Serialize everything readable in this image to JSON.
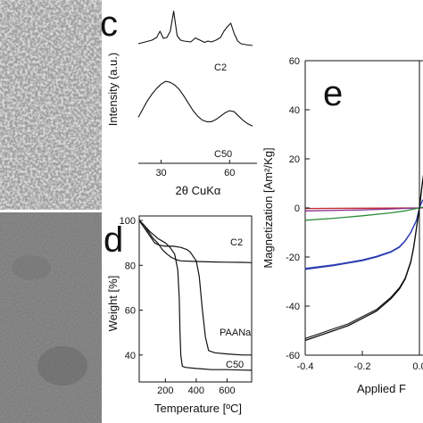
{
  "panels": {
    "c": {
      "letter": "c"
    },
    "d": {
      "letter": "d"
    },
    "e": {
      "letter": "e"
    }
  },
  "colors": {
    "ink": "#111111",
    "em_top_background": "#d9d9d9",
    "em_bottom_background": "#8a8a8a",
    "blue": "#2b3bb0",
    "green": "#2e8b3a",
    "purple": "#8a2a8a",
    "red": "#c0282d"
  },
  "chart_data": [
    {
      "panel": "c",
      "type": "line",
      "xlabel": "2θ CuKα",
      "ylabel": "Intensity (a.u.)",
      "xlim": [
        20,
        72
      ],
      "xticks": [
        30,
        60
      ],
      "series": [
        {
          "name": "C2",
          "x": [
            20,
            23,
            26,
            28,
            29.5,
            31,
            32.5,
            34,
            35.5,
            37,
            38.5,
            40,
            43,
            45,
            47,
            49,
            50.5,
            52,
            54,
            56,
            57.5,
            59,
            60.5,
            62,
            63.5,
            65,
            67,
            70
          ],
          "y": [
            0.22,
            0.26,
            0.3,
            0.36,
            0.5,
            0.34,
            0.36,
            0.5,
            0.95,
            0.4,
            0.3,
            0.28,
            0.26,
            0.35,
            0.3,
            0.25,
            0.28,
            0.26,
            0.3,
            0.36,
            0.5,
            0.6,
            0.68,
            0.45,
            0.28,
            0.22,
            0.2,
            0.18
          ]
        },
        {
          "name": "C50",
          "x": [
            20,
            22,
            24,
            26,
            28,
            30,
            32,
            34,
            36,
            38,
            40,
            42,
            44,
            46,
            48,
            50,
            52,
            54,
            56,
            58,
            60,
            62,
            64,
            66,
            68,
            70
          ],
          "y": [
            0.3,
            0.45,
            0.6,
            0.72,
            0.82,
            0.9,
            0.95,
            0.93,
            0.88,
            0.8,
            0.68,
            0.55,
            0.42,
            0.32,
            0.25,
            0.22,
            0.22,
            0.26,
            0.32,
            0.38,
            0.42,
            0.4,
            0.32,
            0.24,
            0.18,
            0.14
          ]
        }
      ]
    },
    {
      "panel": "d",
      "type": "line",
      "xlabel": "Temperature [ºC]",
      "ylabel": "Weight [%]",
      "xlim": [
        30,
        760
      ],
      "ylim": [
        28,
        102
      ],
      "xticks": [
        200,
        400,
        600
      ],
      "yticks": [
        40,
        60,
        80,
        100
      ],
      "series": [
        {
          "name": "C2",
          "x": [
            30,
            60,
            90,
            120,
            150,
            180,
            210,
            240,
            270,
            300,
            400,
            500,
            600,
            700,
            760
          ],
          "y": [
            100,
            98,
            95,
            92,
            90,
            87,
            85,
            83.5,
            82.5,
            82,
            81.7,
            81.5,
            81.4,
            81.3,
            81.2
          ]
        },
        {
          "name": "PAANa",
          "x": [
            30,
            60,
            100,
            130,
            160,
            200,
            250,
            300,
            340,
            360,
            380,
            400,
            420,
            440,
            460,
            480,
            520,
            600,
            700,
            760
          ],
          "y": [
            100,
            97,
            93,
            90,
            89,
            88.5,
            88.5,
            88,
            87,
            86,
            84,
            82,
            75,
            60,
            48,
            42,
            41,
            40.5,
            40,
            40
          ]
        },
        {
          "name": "C50",
          "x": [
            30,
            60,
            100,
            150,
            200,
            230,
            260,
            280,
            290,
            295,
            300,
            310,
            330,
            400,
            500,
            600,
            700,
            760
          ],
          "y": [
            100,
            98,
            95,
            92,
            90,
            88,
            85,
            78,
            65,
            50,
            40,
            35,
            34.5,
            34,
            33.5,
            33.5,
            33.3,
            33.2
          ]
        }
      ]
    },
    {
      "panel": "e",
      "type": "line",
      "xlabel": "Applied F",
      "ylabel": "Magnetization [Am²/Kg]",
      "xlim": [
        -0.4,
        0.03
      ],
      "ylim": [
        -60,
        60
      ],
      "xticks": [
        -0.4,
        -0.2,
        0.0
      ],
      "xtick_labels": [
        "-0.4",
        "-0.2",
        "0.0"
      ],
      "yticks": [
        -60,
        -40,
        -20,
        0,
        20,
        40,
        60
      ],
      "series": [
        {
          "color": "black",
          "x": [
            -0.4,
            -0.35,
            -0.3,
            -0.25,
            -0.2,
            -0.15,
            -0.1,
            -0.07,
            -0.05,
            -0.03,
            -0.02,
            -0.01,
            0,
            0.01,
            0.02
          ],
          "y": [
            -54,
            -52,
            -50,
            -48,
            -45,
            -42,
            -37,
            -33,
            -29,
            -22,
            -16,
            -8,
            0,
            10,
            18
          ]
        },
        {
          "color": "blue",
          "x": [
            -0.4,
            -0.3,
            -0.2,
            -0.15,
            -0.1,
            -0.07,
            -0.05,
            -0.03,
            -0.01,
            0,
            0.01,
            0.02
          ],
          "y": [
            -25,
            -23.5,
            -21.5,
            -20,
            -18,
            -16,
            -13.5,
            -10,
            -5,
            0,
            3,
            4
          ]
        },
        {
          "color": "green",
          "x": [
            -0.4,
            -0.3,
            -0.2,
            -0.1,
            -0.05,
            0,
            0.02
          ],
          "y": [
            -5,
            -4.2,
            -3.2,
            -2,
            -1.2,
            0,
            0.5
          ]
        },
        {
          "color": "purple",
          "x": [
            -0.4,
            -0.2,
            0,
            0.02
          ],
          "y": [
            -1.2,
            -0.8,
            0,
            0.2
          ]
        },
        {
          "color": "red",
          "x": [
            -0.4,
            -0.2,
            0,
            0.02
          ],
          "y": [
            -0.2,
            -0.1,
            0,
            0.05
          ]
        }
      ]
    }
  ]
}
